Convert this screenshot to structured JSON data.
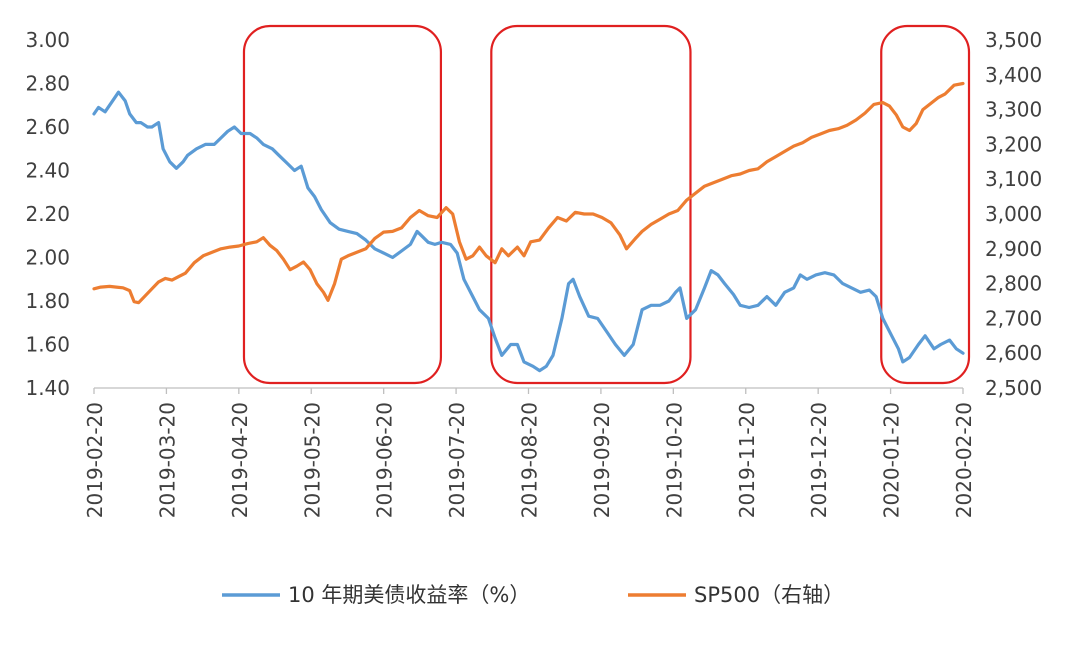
{
  "chart_data": {
    "type": "line",
    "title": "",
    "xlabel": "",
    "ylabel": "",
    "x_ticks": [
      "2019-02-20",
      "2019-03-20",
      "2019-04-20",
      "2019-05-20",
      "2019-06-20",
      "2019-07-20",
      "2019-08-20",
      "2019-09-20",
      "2019-10-20",
      "2019-11-20",
      "2019-12-20",
      "2020-01-20",
      "2020-02-20"
    ],
    "y_left": {
      "range": [
        1.4,
        3.0
      ],
      "ticks": [
        "1.40",
        "1.60",
        "1.80",
        "2.00",
        "2.20",
        "2.40",
        "2.60",
        "2.80",
        "3.00"
      ]
    },
    "y_right": {
      "range": [
        2500,
        3500
      ],
      "ticks": [
        "2,500",
        "2,600",
        "2,700",
        "2,800",
        "2,900",
        "3,000",
        "3,100",
        "3,200",
        "3,300",
        "3,400",
        "3,500"
      ]
    },
    "legend_position": "bottom",
    "colors": {
      "yield": "#5b9bd5",
      "sp500": "#ed7d31",
      "highlight": "#e02020",
      "axis": "#bfbfbf",
      "text": "#404040"
    },
    "series": [
      {
        "name": "10 年期美债收益率（%）",
        "axis": "left",
        "points": [
          [
            0,
            2.66
          ],
          [
            0.2,
            2.69
          ],
          [
            0.5,
            2.67
          ],
          [
            0.9,
            2.73
          ],
          [
            1.1,
            2.76
          ],
          [
            1.4,
            2.72
          ],
          [
            1.6,
            2.66
          ],
          [
            1.9,
            2.62
          ],
          [
            2.1,
            2.62
          ],
          [
            2.4,
            2.6
          ],
          [
            2.6,
            2.6
          ],
          [
            2.9,
            2.62
          ],
          [
            3.1,
            2.5
          ],
          [
            3.4,
            2.44
          ],
          [
            3.7,
            2.41
          ],
          [
            4,
            2.44
          ],
          [
            4.2,
            2.47
          ],
          [
            4.6,
            2.5
          ],
          [
            5,
            2.52
          ],
          [
            5.4,
            2.52
          ],
          [
            5.7,
            2.55
          ],
          [
            6,
            2.58
          ],
          [
            6.3,
            2.6
          ],
          [
            6.6,
            2.57
          ],
          [
            7,
            2.57
          ],
          [
            7.3,
            2.55
          ],
          [
            7.6,
            2.52
          ],
          [
            8,
            2.5
          ],
          [
            8.3,
            2.47
          ],
          [
            8.7,
            2.43
          ],
          [
            9,
            2.4
          ],
          [
            9.3,
            2.42
          ],
          [
            9.6,
            2.32
          ],
          [
            9.9,
            2.28
          ],
          [
            10.2,
            2.22
          ],
          [
            10.6,
            2.16
          ],
          [
            11,
            2.13
          ],
          [
            11.4,
            2.12
          ],
          [
            11.8,
            2.11
          ],
          [
            12.2,
            2.08
          ],
          [
            12.6,
            2.04
          ],
          [
            13,
            2.02
          ],
          [
            13.4,
            2.0
          ],
          [
            13.8,
            2.03
          ],
          [
            14.2,
            2.06
          ],
          [
            14.5,
            2.12
          ],
          [
            14.7,
            2.1
          ],
          [
            15,
            2.07
          ],
          [
            15.3,
            2.06
          ],
          [
            15.6,
            2.07
          ],
          [
            16,
            2.06
          ],
          [
            16.3,
            2.02
          ],
          [
            16.6,
            1.9
          ],
          [
            17,
            1.82
          ],
          [
            17.3,
            1.76
          ],
          [
            17.7,
            1.72
          ],
          [
            18,
            1.63
          ],
          [
            18.3,
            1.55
          ],
          [
            18.7,
            1.6
          ],
          [
            19,
            1.6
          ],
          [
            19.3,
            1.52
          ],
          [
            19.7,
            1.5
          ],
          [
            20,
            1.48
          ],
          [
            20.3,
            1.5
          ],
          [
            20.6,
            1.55
          ],
          [
            21,
            1.72
          ],
          [
            21.3,
            1.88
          ],
          [
            21.5,
            1.9
          ],
          [
            21.8,
            1.82
          ],
          [
            22.2,
            1.73
          ],
          [
            22.6,
            1.72
          ],
          [
            23,
            1.66
          ],
          [
            23.4,
            1.6
          ],
          [
            23.8,
            1.55
          ],
          [
            24.2,
            1.6
          ],
          [
            24.6,
            1.76
          ],
          [
            25,
            1.78
          ],
          [
            25.4,
            1.78
          ],
          [
            25.8,
            1.8
          ],
          [
            26.1,
            1.84
          ],
          [
            26.3,
            1.86
          ],
          [
            26.6,
            1.72
          ],
          [
            27,
            1.76
          ],
          [
            27.4,
            1.86
          ],
          [
            27.7,
            1.94
          ],
          [
            28,
            1.92
          ],
          [
            28.3,
            1.88
          ],
          [
            28.7,
            1.83
          ],
          [
            29,
            1.78
          ],
          [
            29.4,
            1.77
          ],
          [
            29.8,
            1.78
          ],
          [
            30.2,
            1.82
          ],
          [
            30.6,
            1.78
          ],
          [
            31,
            1.84
          ],
          [
            31.4,
            1.86
          ],
          [
            31.7,
            1.92
          ],
          [
            32,
            1.9
          ],
          [
            32.4,
            1.92
          ],
          [
            32.8,
            1.93
          ],
          [
            33.2,
            1.92
          ],
          [
            33.6,
            1.88
          ],
          [
            34,
            1.86
          ],
          [
            34.4,
            1.84
          ],
          [
            34.8,
            1.85
          ],
          [
            35.1,
            1.82
          ],
          [
            35.4,
            1.72
          ],
          [
            35.8,
            1.64
          ],
          [
            36.1,
            1.58
          ],
          [
            36.3,
            1.52
          ],
          [
            36.6,
            1.54
          ],
          [
            37,
            1.6
          ],
          [
            37.3,
            1.64
          ],
          [
            37.7,
            1.58
          ],
          [
            38,
            1.6
          ],
          [
            38.4,
            1.62
          ],
          [
            38.7,
            1.58
          ],
          [
            39,
            1.56
          ]
        ]
      },
      {
        "name": "SP500（右轴）",
        "axis": "right",
        "points": [
          [
            0,
            2785
          ],
          [
            0.3,
            2790
          ],
          [
            0.7,
            2792
          ],
          [
            1,
            2790
          ],
          [
            1.3,
            2788
          ],
          [
            1.6,
            2780
          ],
          [
            1.8,
            2748
          ],
          [
            2,
            2745
          ],
          [
            2.3,
            2765
          ],
          [
            2.6,
            2785
          ],
          [
            2.9,
            2805
          ],
          [
            3.2,
            2815
          ],
          [
            3.5,
            2810
          ],
          [
            3.8,
            2820
          ],
          [
            4.1,
            2830
          ],
          [
            4.5,
            2860
          ],
          [
            4.9,
            2880
          ],
          [
            5.3,
            2890
          ],
          [
            5.7,
            2900
          ],
          [
            6.1,
            2905
          ],
          [
            6.5,
            2908
          ],
          [
            6.9,
            2915
          ],
          [
            7.3,
            2920
          ],
          [
            7.6,
            2932
          ],
          [
            7.9,
            2910
          ],
          [
            8.2,
            2895
          ],
          [
            8.5,
            2870
          ],
          [
            8.8,
            2840
          ],
          [
            9.1,
            2850
          ],
          [
            9.4,
            2862
          ],
          [
            9.7,
            2840
          ],
          [
            10,
            2800
          ],
          [
            10.3,
            2775
          ],
          [
            10.5,
            2752
          ],
          [
            10.8,
            2800
          ],
          [
            11.1,
            2870
          ],
          [
            11.4,
            2880
          ],
          [
            11.8,
            2890
          ],
          [
            12.2,
            2900
          ],
          [
            12.6,
            2930
          ],
          [
            13,
            2948
          ],
          [
            13.4,
            2950
          ],
          [
            13.8,
            2960
          ],
          [
            14.2,
            2990
          ],
          [
            14.6,
            3010
          ],
          [
            15,
            2995
          ],
          [
            15.4,
            2990
          ],
          [
            15.8,
            3018
          ],
          [
            16.1,
            3000
          ],
          [
            16.4,
            2920
          ],
          [
            16.7,
            2870
          ],
          [
            17,
            2880
          ],
          [
            17.3,
            2905
          ],
          [
            17.6,
            2880
          ],
          [
            18,
            2860
          ],
          [
            18.3,
            2900
          ],
          [
            18.6,
            2880
          ],
          [
            19,
            2905
          ],
          [
            19.3,
            2880
          ],
          [
            19.6,
            2920
          ],
          [
            20,
            2925
          ],
          [
            20.4,
            2960
          ],
          [
            20.8,
            2990
          ],
          [
            21.2,
            2980
          ],
          [
            21.6,
            3005
          ],
          [
            22,
            3000
          ],
          [
            22.4,
            3000
          ],
          [
            22.8,
            2990
          ],
          [
            23.2,
            2975
          ],
          [
            23.6,
            2940
          ],
          [
            23.9,
            2900
          ],
          [
            24.3,
            2930
          ],
          [
            24.6,
            2950
          ],
          [
            25,
            2970
          ],
          [
            25.4,
            2985
          ],
          [
            25.8,
            3000
          ],
          [
            26.2,
            3010
          ],
          [
            26.6,
            3040
          ],
          [
            27,
            3060
          ],
          [
            27.4,
            3080
          ],
          [
            27.8,
            3090
          ],
          [
            28.2,
            3100
          ],
          [
            28.6,
            3110
          ],
          [
            29,
            3115
          ],
          [
            29.4,
            3125
          ],
          [
            29.8,
            3130
          ],
          [
            30.2,
            3150
          ],
          [
            30.6,
            3165
          ],
          [
            31,
            3180
          ],
          [
            31.4,
            3195
          ],
          [
            31.8,
            3205
          ],
          [
            32.2,
            3220
          ],
          [
            32.6,
            3230
          ],
          [
            33,
            3240
          ],
          [
            33.4,
            3245
          ],
          [
            33.8,
            3255
          ],
          [
            34.2,
            3270
          ],
          [
            34.6,
            3290
          ],
          [
            35,
            3315
          ],
          [
            35.4,
            3320
          ],
          [
            35.7,
            3310
          ],
          [
            36,
            3285
          ],
          [
            36.3,
            3250
          ],
          [
            36.6,
            3240
          ],
          [
            36.9,
            3260
          ],
          [
            37.2,
            3300
          ],
          [
            37.6,
            3320
          ],
          [
            37.9,
            3335
          ],
          [
            38.2,
            3345
          ],
          [
            38.6,
            3370
          ],
          [
            39,
            3375
          ]
        ]
      }
    ],
    "highlights": [
      {
        "from": 7.0,
        "to": 15.3
      },
      {
        "from": 18.1,
        "to": 26.5
      },
      {
        "from": 35.6,
        "to": 39.0
      }
    ]
  }
}
